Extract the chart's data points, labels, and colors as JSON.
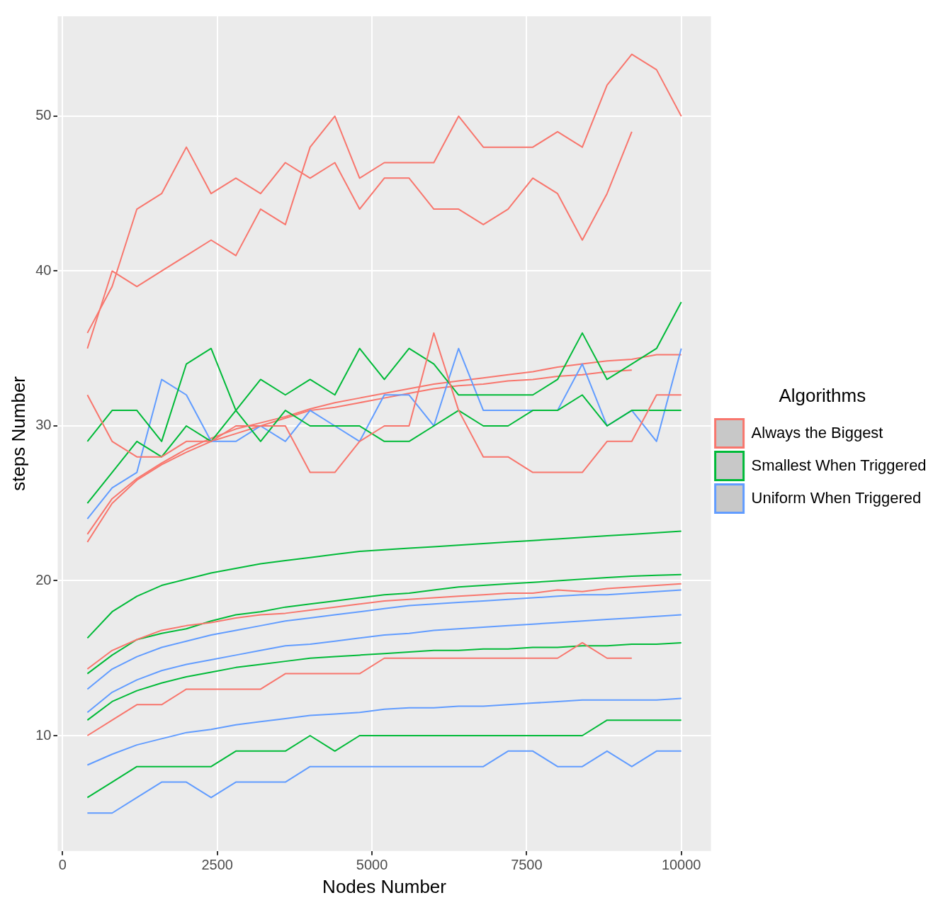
{
  "chart_data": {
    "type": "line",
    "xlabel": "Nodes Number",
    "ylabel": "steps Number",
    "legend_title": "Algorithms",
    "legend": "right",
    "grid": true,
    "x": [
      400,
      800,
      1200,
      1600,
      2000,
      2400,
      2800,
      3200,
      3600,
      4000,
      4400,
      4800,
      5200,
      5600,
      6000,
      6400,
      6800,
      7200,
      7600,
      8000,
      8400,
      8800,
      9200,
      9600,
      10000
    ],
    "xlim": [
      -80,
      10480
    ],
    "xticks": [
      0,
      2500,
      5000,
      7500,
      10000
    ],
    "ylim": [
      2.55,
      56.45
    ],
    "yticks": [
      10,
      20,
      30,
      40,
      50
    ],
    "series": [
      {
        "color": "#f8766d",
        "values": [
          35,
          40,
          39,
          40,
          41,
          42,
          41,
          44,
          43,
          48,
          50,
          46,
          47,
          47,
          47,
          50,
          48,
          48,
          48,
          49,
          48,
          52,
          54,
          53,
          50
        ]
      },
      {
        "color": "#f8766d",
        "x": [
          400,
          800,
          1200,
          1600,
          2000,
          2400,
          2800,
          3200,
          3600,
          4000,
          4400,
          4800,
          5200,
          5600,
          6000,
          6400,
          6800,
          7200,
          7600,
          8000,
          8400,
          8800,
          9200
        ],
        "values": [
          36,
          39,
          44,
          45,
          48,
          45,
          46,
          45,
          47,
          46,
          47,
          44,
          46,
          46,
          44,
          44,
          43,
          44,
          46,
          45,
          42,
          45,
          49
        ]
      },
      {
        "color": "#f8766d",
        "values": [
          32,
          29,
          28,
          28,
          29,
          29,
          30,
          30,
          30,
          27,
          27,
          29,
          30,
          30,
          36,
          31,
          28,
          28,
          27,
          27,
          27,
          29,
          29,
          32,
          32
        ]
      },
      {
        "color": "#f8766d",
        "x": [
          400,
          800,
          1200,
          1600,
          2000,
          2400,
          2800,
          3200,
          3600,
          4000,
          4400,
          4800,
          5200,
          5600,
          6000,
          6400,
          6800,
          7200,
          7600,
          8000,
          8400,
          8800,
          9200
        ],
        "values": [
          10,
          11,
          12,
          12,
          13,
          13,
          13,
          13,
          14,
          14,
          14,
          14,
          15,
          15,
          15,
          15,
          15,
          15,
          15,
          15,
          16,
          15,
          15
        ]
      },
      {
        "color": "#00ba38",
        "values": [
          29,
          31,
          31,
          29,
          34,
          35,
          31,
          33,
          32,
          33,
          32,
          35,
          33,
          35,
          34,
          32,
          32,
          32,
          32,
          33,
          36,
          33,
          34,
          35,
          38
        ]
      },
      {
        "color": "#00ba38",
        "values": [
          25,
          27,
          29,
          28,
          30,
          29,
          31,
          29,
          31,
          30,
          30,
          30,
          29,
          29,
          30,
          31,
          30,
          30,
          31,
          31,
          32,
          30,
          31,
          31,
          31
        ]
      },
      {
        "color": "#00ba38",
        "values": [
          6,
          7,
          8,
          8,
          8,
          8,
          9,
          9,
          9,
          10,
          9,
          10,
          10,
          10,
          10,
          10,
          10,
          10,
          10,
          10,
          10,
          11,
          11,
          11,
          11
        ]
      },
      {
        "color": "#619cff",
        "values": [
          24,
          26,
          27,
          33,
          32,
          29,
          29,
          30,
          29,
          31,
          30,
          29,
          32,
          32,
          30,
          35,
          31,
          31,
          31,
          31,
          34,
          30,
          31,
          29,
          35
        ]
      },
      {
        "color": "#619cff",
        "values": [
          5,
          5,
          6,
          7,
          7,
          6,
          7,
          7,
          7,
          8,
          8,
          8,
          8,
          8,
          8,
          8,
          8,
          9,
          9,
          8,
          8,
          9,
          8,
          9,
          9
        ]
      },
      {
        "name": "Always the Biggest",
        "color": "#f8766d",
        "values": [
          23,
          25.3,
          26.6,
          27.6,
          28.5,
          29.2,
          29.8,
          30.2,
          30.6,
          31.1,
          31.5,
          31.8,
          32.1,
          32.4,
          32.7,
          32.9,
          33.1,
          33.3,
          33.5,
          33.8,
          34,
          34.2,
          34.3,
          34.6,
          34.6
        ]
      },
      {
        "color": "#f8766d",
        "x": [
          400,
          800,
          1200,
          1600,
          2000,
          2400,
          2800,
          3200,
          3600,
          4000,
          4400,
          4800,
          5200,
          5600,
          6000,
          6400,
          6800,
          7200,
          7600,
          8000,
          8400,
          8800,
          9200
        ],
        "values": [
          22.5,
          25,
          26.5,
          27.5,
          28.3,
          29,
          29.5,
          30,
          30.5,
          31,
          31.2,
          31.5,
          31.8,
          32.1,
          32.4,
          32.6,
          32.7,
          32.9,
          33,
          33.2,
          33.3,
          33.5,
          33.6
        ]
      },
      {
        "color": "#f8766d",
        "values": [
          14.3,
          15.5,
          16.2,
          16.8,
          17.1,
          17.3,
          17.6,
          17.8,
          17.9,
          18.1,
          18.3,
          18.5,
          18.7,
          18.8,
          18.9,
          19,
          19.1,
          19.2,
          19.2,
          19.4,
          19.3,
          19.5,
          19.6,
          19.7,
          19.8
        ]
      },
      {
        "name": "Smallest When Triggered",
        "color": "#00ba38",
        "values": [
          16.3,
          18,
          19,
          19.7,
          20.1,
          20.5,
          20.8,
          21.1,
          21.3,
          21.5,
          21.7,
          21.9,
          22,
          22.1,
          22.2,
          22.3,
          22.4,
          22.5,
          22.6,
          22.7,
          22.8,
          22.9,
          23,
          23.1,
          23.2
        ]
      },
      {
        "color": "#00ba38",
        "values": [
          14,
          15.2,
          16.2,
          16.6,
          16.9,
          17.4,
          17.8,
          18,
          18.3,
          18.5,
          18.7,
          18.9,
          19.1,
          19.2,
          19.4,
          19.6,
          19.7,
          19.8,
          19.9,
          20,
          20.1,
          20.2,
          20.3,
          20.35,
          20.4
        ]
      },
      {
        "color": "#00ba38",
        "values": [
          11,
          12.2,
          12.9,
          13.4,
          13.8,
          14.1,
          14.4,
          14.6,
          14.8,
          15,
          15.1,
          15.2,
          15.3,
          15.4,
          15.5,
          15.5,
          15.6,
          15.6,
          15.7,
          15.7,
          15.8,
          15.8,
          15.9,
          15.9,
          16
        ]
      },
      {
        "name": "Uniform When Triggered",
        "color": "#619cff",
        "values": [
          13,
          14.3,
          15.1,
          15.7,
          16.1,
          16.5,
          16.8,
          17.1,
          17.4,
          17.6,
          17.8,
          18,
          18.2,
          18.4,
          18.5,
          18.6,
          18.7,
          18.8,
          18.9,
          19,
          19.1,
          19.1,
          19.2,
          19.3,
          19.4
        ]
      },
      {
        "color": "#619cff",
        "values": [
          11.5,
          12.8,
          13.6,
          14.2,
          14.6,
          14.9,
          15.2,
          15.5,
          15.8,
          15.9,
          16.1,
          16.3,
          16.5,
          16.6,
          16.8,
          16.9,
          17,
          17.1,
          17.2,
          17.3,
          17.4,
          17.5,
          17.6,
          17.7,
          17.8
        ]
      },
      {
        "color": "#619cff",
        "values": [
          8.1,
          8.8,
          9.4,
          9.8,
          10.2,
          10.4,
          10.7,
          10.9,
          11.1,
          11.3,
          11.4,
          11.5,
          11.7,
          11.8,
          11.8,
          11.9,
          11.9,
          12,
          12.1,
          12.2,
          12.3,
          12.3,
          12.3,
          12.3,
          12.4
        ]
      }
    ]
  }
}
